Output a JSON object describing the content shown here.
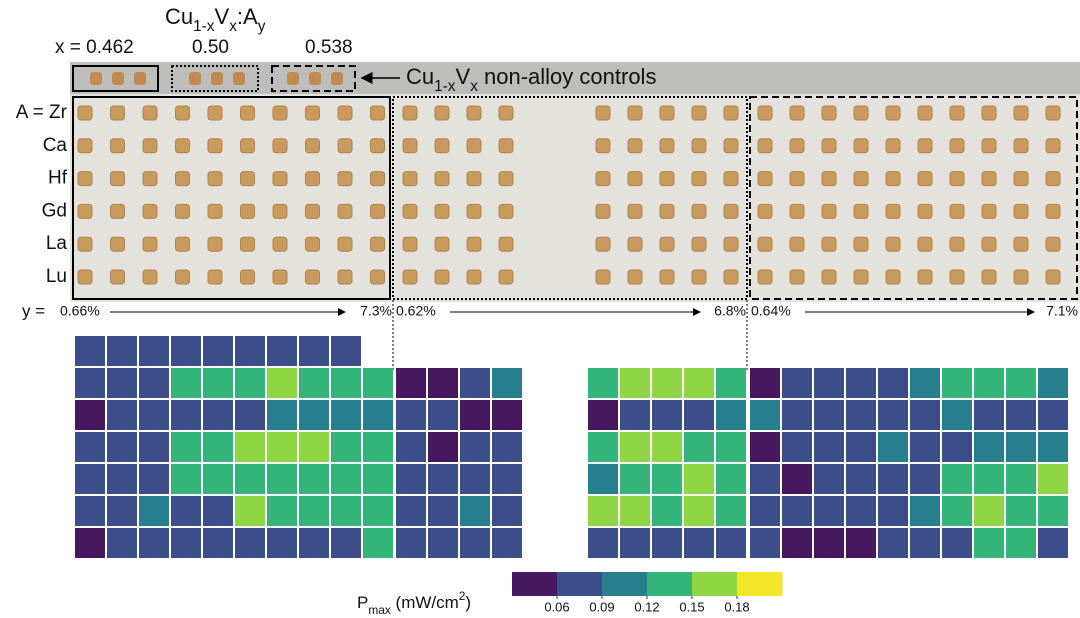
{
  "chart_data": {
    "type": "heatmap",
    "formula": [
      "Cu",
      "1-x",
      "V",
      "x",
      ":A",
      "y"
    ],
    "x_labels": [
      "x = 0.462",
      "0.50",
      "0.538"
    ],
    "control_label": [
      "Cu",
      "1-x",
      "V",
      "x",
      " non-alloy controls"
    ],
    "row_labels": [
      "A = Zr",
      "Ca",
      "Hf",
      "Gd",
      "La",
      "Lu"
    ],
    "y_prefix": "y =",
    "y_ranges": [
      [
        "0.66%",
        "7.3%"
      ],
      [
        "0.62%",
        "6.8%"
      ],
      [
        "0.64%",
        "7.1%"
      ]
    ],
    "colorbar_label": [
      "P",
      "max",
      " (mW/cm",
      "2",
      ")"
    ],
    "clim": [
      0.03,
      0.21
    ],
    "cticks": [
      0.06,
      0.09,
      0.12,
      0.15,
      0.18
    ],
    "colors": [
      "#46185f",
      "#3d4d8a",
      "#277f8e",
      "#33b57a",
      "#8fd644",
      "#f2e52a"
    ],
    "groups": [
      {
        "rows": [
          [
            0.075,
            0.075,
            0.075,
            0.075,
            0.075,
            0.075,
            0.075,
            0.075,
            0.075
          ],
          [
            0.075,
            0.075,
            0.075,
            0.135,
            0.135,
            0.135,
            0.165,
            0.135,
            0.135,
            0.135
          ],
          [
            0.05,
            0.075,
            0.075,
            0.075,
            0.075,
            0.075,
            0.105,
            0.105,
            0.105,
            0.105
          ],
          [
            0.075,
            0.075,
            0.075,
            0.135,
            0.135,
            0.165,
            0.165,
            0.165,
            0.135,
            0.135
          ],
          [
            0.075,
            0.075,
            0.075,
            0.135,
            0.135,
            0.135,
            0.135,
            0.135,
            0.135,
            0.135
          ],
          [
            0.075,
            0.075,
            0.105,
            0.075,
            0.075,
            0.165,
            0.135,
            0.135,
            0.135,
            0.135
          ],
          [
            0.05,
            0.075,
            0.075,
            0.075,
            0.075,
            0.075,
            0.075,
            0.075,
            0.075,
            0.135
          ]
        ]
      },
      {
        "rows": [
          [
            0.05,
            0.05,
            0.075,
            0.105
          ],
          [
            0.075,
            0.075,
            0.05,
            0.05
          ],
          [
            0.075,
            0.05,
            0.075,
            0.075
          ],
          [
            0.075,
            0.075,
            0.075,
            0.075
          ],
          [
            0.075,
            0.075,
            0.105,
            0.075
          ],
          [
            0.075,
            0.075,
            0.075,
            0.075
          ]
        ]
      },
      {
        "rows": [
          [
            0.135,
            0.165,
            0.165,
            0.165,
            0.135
          ],
          [
            0.05,
            0.075,
            0.075,
            0.075,
            0.105
          ],
          [
            0.135,
            0.165,
            0.165,
            0.135,
            0.135
          ],
          [
            0.105,
            0.135,
            0.135,
            0.165,
            0.135
          ],
          [
            0.165,
            0.165,
            0.135,
            0.165,
            0.135
          ],
          [
            0.075,
            0.075,
            0.075,
            0.075,
            0.075
          ]
        ]
      },
      {
        "rows": [
          [
            0.05,
            0.075,
            0.075,
            0.075,
            0.075,
            0.105,
            0.135,
            0.135,
            0.135,
            0.105
          ],
          [
            0.105,
            0.075,
            0.075,
            0.075,
            0.075,
            0.075,
            0.105,
            0.075,
            0.075,
            0.075
          ],
          [
            0.05,
            0.075,
            0.075,
            0.075,
            0.105,
            0.075,
            0.075,
            0.105,
            0.105,
            0.105
          ],
          [
            0.075,
            0.05,
            0.075,
            0.075,
            0.075,
            0.075,
            0.135,
            0.135,
            0.135,
            0.165
          ],
          [
            0.075,
            0.075,
            0.075,
            0.075,
            0.075,
            0.105,
            0.135,
            0.165,
            0.135,
            0.135
          ],
          [
            0.075,
            0.05,
            0.05,
            0.05,
            0.075,
            0.075,
            0.075,
            0.135,
            0.135,
            0.075
          ]
        ]
      }
    ]
  }
}
